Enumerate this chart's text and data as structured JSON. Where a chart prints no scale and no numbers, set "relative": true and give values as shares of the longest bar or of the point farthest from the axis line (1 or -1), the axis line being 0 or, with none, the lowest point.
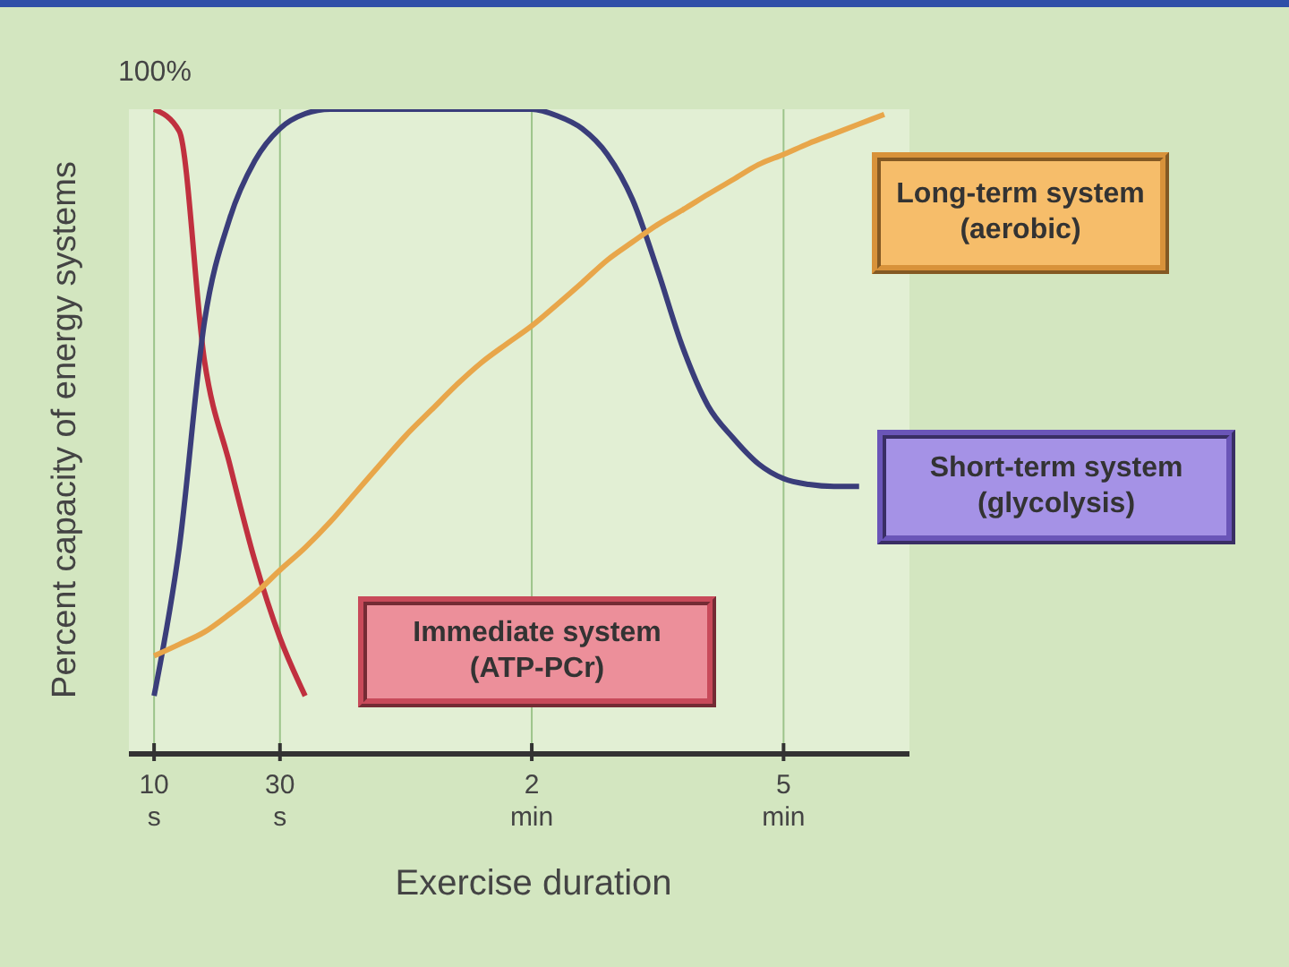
{
  "chart_data": {
    "type": "line",
    "relative": true,
    "xlabel": "Exercise duration",
    "ylabel": "Percent capacity of energy systems",
    "annotations": [
      "100%"
    ],
    "categories": [
      null,
      "10 s",
      null,
      null,
      null,
      null,
      "30 s",
      null,
      null,
      null,
      null,
      null,
      null,
      null,
      null,
      null,
      "2 min",
      null,
      null,
      null,
      null,
      null,
      null,
      null,
      null,
      null,
      "5 min",
      null,
      null,
      null,
      null,
      null
    ],
    "grid": "x",
    "legend": false,
    "marker": "none",
    "line_style": "solid",
    "series": [
      {
        "name": "Immediate system (ATP-PCr)",
        "color": "#c0303f",
        "values": [
          null,
          1.0,
          0.966,
          0.61,
          0.45,
          0.3,
          0.18,
          0.09,
          null,
          null,
          null,
          null,
          null,
          null,
          null,
          null,
          null,
          null,
          null,
          null,
          null,
          null,
          null,
          null,
          null,
          null,
          null,
          null,
          null,
          null,
          null,
          null
        ]
      },
      {
        "name": "Short-term system (glycolysis)",
        "color": "#3a3d7a",
        "values": [
          null,
          0.09,
          0.32,
          0.67,
          0.83,
          0.92,
          0.97,
          0.993,
          1.0,
          1.0,
          1.0,
          1.0,
          1.0,
          1.0,
          1.0,
          1.0,
          1.0,
          0.99,
          0.97,
          0.93,
          0.86,
          0.75,
          0.63,
          0.54,
          0.49,
          0.45,
          0.427,
          0.418,
          0.415,
          0.415,
          null,
          null
        ]
      },
      {
        "name": "Long-term system (aerobic)",
        "color": "#e8a64a",
        "values": [
          null,
          0.152,
          0.17,
          0.189,
          0.217,
          0.248,
          0.285,
          0.32,
          0.36,
          0.405,
          0.45,
          0.494,
          0.533,
          0.572,
          0.607,
          0.636,
          0.664,
          0.697,
          0.731,
          0.766,
          0.794,
          0.821,
          0.844,
          0.868,
          0.891,
          0.914,
          0.93,
          0.947,
          0.962,
          0.977,
          0.992,
          null
        ]
      }
    ]
  }
}
